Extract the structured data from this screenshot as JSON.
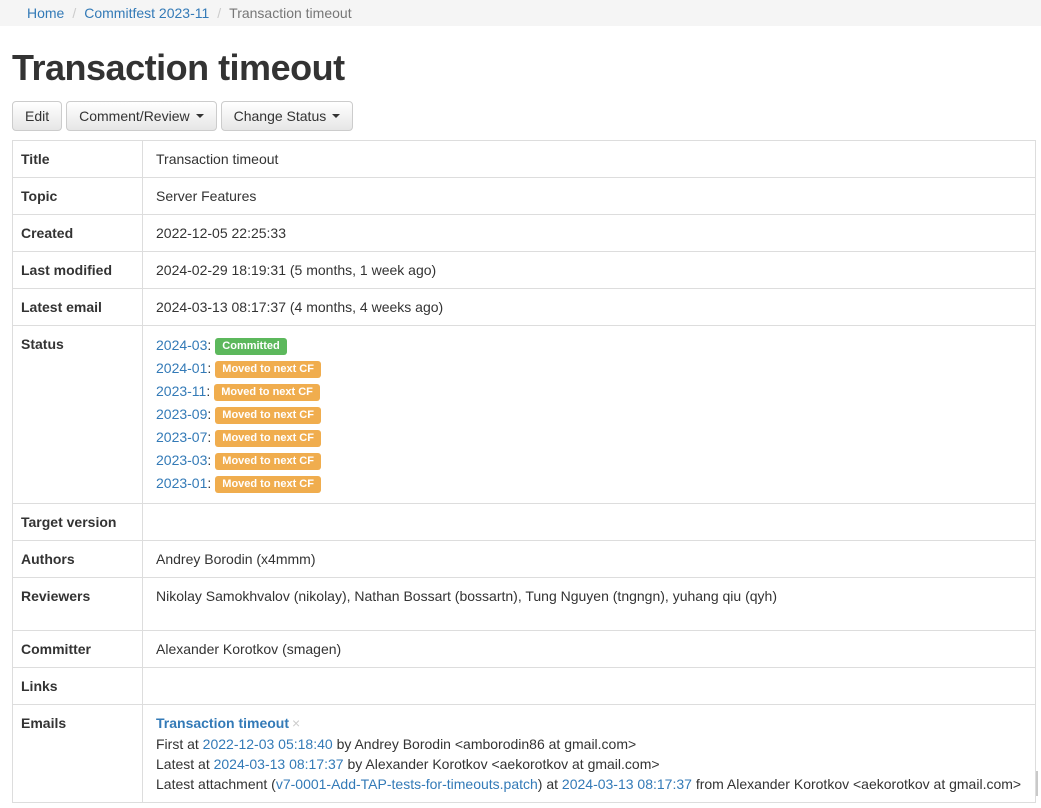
{
  "breadcrumb": {
    "separator": "/",
    "items": [
      {
        "label": "Home",
        "type": "link"
      },
      {
        "label": "Commitfest 2023-11",
        "type": "link"
      },
      {
        "label": "Transaction timeout",
        "type": "current"
      }
    ]
  },
  "page": {
    "title": "Transaction timeout"
  },
  "toolbar": {
    "edit": "Edit",
    "comment_review": "Comment/Review",
    "change_status": "Change Status"
  },
  "punctuation": {
    "colon": ":"
  },
  "labels": {
    "title": "Title",
    "topic": "Topic",
    "created": "Created",
    "last_modified": "Last modified",
    "latest_email": "Latest email",
    "status": "Status",
    "target_version": "Target version",
    "authors": "Authors",
    "reviewers": "Reviewers",
    "committer": "Committer",
    "links": "Links",
    "emails": "Emails"
  },
  "details": {
    "title": "Transaction timeout",
    "topic": "Server Features",
    "created": "2022-12-05 22:25:33",
    "last_modified": "2024-02-29 18:19:31 (5 months, 1 week ago)",
    "latest_email": "2024-03-13 08:17:37 (4 months, 4 weeks ago)",
    "target_version": "",
    "authors": "Andrey Borodin (x4mmm)",
    "reviewers": "Nikolay Samokhvalov (nikolay), Nathan Bossart (bossartn), Tung Nguyen (tngngn), yuhang qiu (qyh)",
    "committer": "Alexander Korotkov (smagen)",
    "links": ""
  },
  "status_history": [
    {
      "cf": "2024-03",
      "status": "Committed",
      "variant": "success"
    },
    {
      "cf": "2024-01",
      "status": "Moved to next CF",
      "variant": "warning"
    },
    {
      "cf": "2023-11",
      "status": "Moved to next CF",
      "variant": "warning"
    },
    {
      "cf": "2023-09",
      "status": "Moved to next CF",
      "variant": "warning"
    },
    {
      "cf": "2023-07",
      "status": "Moved to next CF",
      "variant": "warning"
    },
    {
      "cf": "2023-03",
      "status": "Moved to next CF",
      "variant": "warning"
    },
    {
      "cf": "2023-01",
      "status": "Moved to next CF",
      "variant": "warning"
    }
  ],
  "emails": {
    "thread": {
      "title": "Transaction timeout",
      "close": "×",
      "first_prefix": "First at",
      "first_date": "2022-12-03 05:18:40",
      "first_by": "by Andrey Borodin <amborodin86 at gmail.com>",
      "latest_prefix": "Latest at",
      "latest_date": "2024-03-13 08:17:37",
      "latest_by": "by Alexander Korotkov <aekorotkov at gmail.com>",
      "attach_prefix": "Latest attachment (",
      "attach_file": "v7-0001-Add-TAP-tests-for-timeouts.patch",
      "attach_mid": ") at",
      "attach_date": "2024-03-13 08:17:37",
      "attach_suffix": "from Alexander Korotkov <aekorotkov at gmail.com>"
    }
  },
  "colors": {
    "link": "#337ab7",
    "badge_committed": "#5cb85c",
    "badge_moved_to_next_cf": "#f0ad4e",
    "breadcrumb_background": "#f5f5f5",
    "breadcrumb_active_text": "#777777",
    "table_border": "#dddddd",
    "text": "#333333"
  }
}
